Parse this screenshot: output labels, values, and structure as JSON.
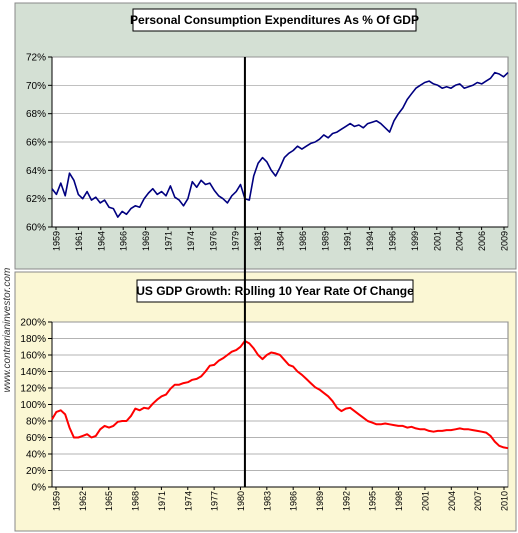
{
  "watermark": "www.contrarianinvestor.com",
  "colors": {
    "top_background": "#d4e0d4",
    "bottom_background": "#fbf7d4",
    "plot_background": "#ffffff",
    "top_series": "#000080",
    "bottom_series": "#ff0000",
    "marker_line": "#000000"
  },
  "marker_year": 1981,
  "chart_data": [
    {
      "type": "line",
      "title": "Personal Consumption Expenditures As % Of GDP",
      "xlabel": "",
      "ylabel": "",
      "xlim": [
        1959,
        2011
      ],
      "ylim": [
        60,
        72
      ],
      "grid": true,
      "legend": "none",
      "yticks": [
        60,
        62,
        64,
        66,
        68,
        70,
        72
      ],
      "ytick_labels": [
        "60%",
        "62%",
        "64%",
        "66%",
        "68%",
        "70%",
        "72%"
      ],
      "xtick_labels": [
        "1959",
        "1961",
        "1964",
        "1966",
        "1969",
        "1971",
        "1974",
        "1976",
        "1979",
        "1981",
        "1984",
        "1986",
        "1989",
        "1991",
        "1994",
        "1996",
        "1999",
        "2001",
        "2004",
        "2006",
        "2009"
      ],
      "series": [
        {
          "x": [
            1959.0,
            1959.5,
            1960.0,
            1960.5,
            1961.0,
            1961.5,
            1962.0,
            1962.5,
            1963.0,
            1963.5,
            1964.0,
            1964.5,
            1965.0,
            1965.5,
            1966.0,
            1966.5,
            1967.0,
            1967.5,
            1968.0,
            1968.5,
            1969.0,
            1969.5,
            1970.0,
            1970.5,
            1971.0,
            1971.5,
            1972.0,
            1972.5,
            1973.0,
            1973.5,
            1974.0,
            1974.5,
            1975.0,
            1975.5,
            1976.0,
            1976.5,
            1977.0,
            1977.5,
            1978.0,
            1978.5,
            1979.0,
            1979.5,
            1980.0,
            1980.5,
            1981.0,
            1981.5,
            1982.0,
            1982.5,
            1983.0,
            1983.5,
            1984.0,
            1984.5,
            1985.0,
            1985.5,
            1986.0,
            1986.5,
            1987.0,
            1987.5,
            1988.0,
            1988.5,
            1989.0,
            1989.5,
            1990.0,
            1990.5,
            1991.0,
            1991.5,
            1992.0,
            1992.5,
            1993.0,
            1993.5,
            1994.0,
            1994.5,
            1995.0,
            1995.5,
            1996.0,
            1996.5,
            1997.0,
            1997.5,
            1998.0,
            1998.5,
            1999.0,
            1999.5,
            2000.0,
            2000.5,
            2001.0,
            2001.5,
            2002.0,
            2002.5,
            2003.0,
            2003.5,
            2004.0,
            2004.5,
            2005.0,
            2005.5,
            2006.0,
            2006.5,
            2007.0,
            2007.5,
            2008.0,
            2008.5,
            2009.0,
            2009.5,
            2010.0,
            2010.5,
            2011.0
          ],
          "y": [
            62.7,
            62.3,
            63.1,
            62.2,
            63.8,
            63.3,
            62.3,
            62.0,
            62.5,
            61.9,
            62.1,
            61.7,
            61.9,
            61.4,
            61.3,
            60.7,
            61.1,
            60.9,
            61.3,
            61.5,
            61.4,
            62.0,
            62.4,
            62.7,
            62.3,
            62.5,
            62.2,
            62.9,
            62.1,
            61.9,
            61.5,
            62.0,
            63.2,
            62.8,
            63.3,
            63.0,
            63.1,
            62.6,
            62.2,
            62.0,
            61.7,
            62.2,
            62.5,
            63.0,
            62.0,
            61.9,
            63.6,
            64.5,
            64.9,
            64.6,
            64.0,
            63.6,
            64.2,
            64.9,
            65.2,
            65.4,
            65.7,
            65.5,
            65.7,
            65.9,
            66.0,
            66.2,
            66.5,
            66.3,
            66.6,
            66.7,
            66.9,
            67.1,
            67.3,
            67.1,
            67.2,
            67.0,
            67.3,
            67.4,
            67.5,
            67.3,
            67.0,
            66.7,
            67.5,
            68.0,
            68.4,
            69.0,
            69.4,
            69.8,
            70.0,
            70.2,
            70.3,
            70.1,
            70.0,
            69.8,
            69.9,
            69.8,
            70.0,
            70.1,
            69.8,
            69.9,
            70.0,
            70.2,
            70.1,
            70.3,
            70.5,
            70.9,
            70.8,
            70.6,
            70.9
          ]
        }
      ]
    },
    {
      "type": "line",
      "title": "US GDP Growth: Rolling 10 Year Rate Of Change",
      "xlabel": "",
      "ylabel": "",
      "xlim": [
        1959,
        2011
      ],
      "ylim": [
        0,
        200
      ],
      "grid": true,
      "legend": "none",
      "yticks": [
        0,
        20,
        40,
        60,
        80,
        100,
        120,
        140,
        160,
        180,
        200
      ],
      "ytick_labels": [
        "0%",
        "20%",
        "40%",
        "60%",
        "80%",
        "100%",
        "120%",
        "140%",
        "160%",
        "180%",
        "200%"
      ],
      "xtick_labels": [
        "1959",
        "1962",
        "1965",
        "1968",
        "1971",
        "1974",
        "1977",
        "1980",
        "1983",
        "1986",
        "1989",
        "1992",
        "1995",
        "1998",
        "2001",
        "2004",
        "2007",
        "2010"
      ],
      "series": [
        {
          "x": [
            1959.0,
            1959.5,
            1960.0,
            1960.5,
            1961.0,
            1961.5,
            1962.0,
            1962.5,
            1963.0,
            1963.5,
            1964.0,
            1964.5,
            1965.0,
            1965.5,
            1966.0,
            1966.5,
            1967.0,
            1967.5,
            1968.0,
            1968.5,
            1969.0,
            1969.5,
            1970.0,
            1970.5,
            1971.0,
            1971.5,
            1972.0,
            1972.5,
            1973.0,
            1973.5,
            1974.0,
            1974.5,
            1975.0,
            1975.5,
            1976.0,
            1976.5,
            1977.0,
            1977.5,
            1978.0,
            1978.5,
            1979.0,
            1979.5,
            1980.0,
            1980.5,
            1981.0,
            1981.5,
            1982.0,
            1982.5,
            1983.0,
            1983.5,
            1984.0,
            1984.5,
            1985.0,
            1985.5,
            1986.0,
            1986.5,
            1987.0,
            1987.5,
            1988.0,
            1988.5,
            1989.0,
            1989.5,
            1990.0,
            1990.5,
            1991.0,
            1991.5,
            1992.0,
            1992.5,
            1993.0,
            1993.5,
            1994.0,
            1994.5,
            1995.0,
            1995.5,
            1996.0,
            1996.5,
            1997.0,
            1997.5,
            1998.0,
            1998.5,
            1999.0,
            1999.5,
            2000.0,
            2000.5,
            2001.0,
            2001.5,
            2002.0,
            2002.5,
            2003.0,
            2003.5,
            2004.0,
            2004.5,
            2005.0,
            2005.5,
            2006.0,
            2006.5,
            2007.0,
            2007.5,
            2008.0,
            2008.5,
            2009.0,
            2009.5,
            2010.0,
            2010.5,
            2011.0
          ],
          "y": [
            82,
            91,
            93,
            88,
            72,
            60,
            60,
            62,
            64,
            60,
            62,
            70,
            74,
            72,
            74,
            79,
            80,
            80,
            86,
            95,
            93,
            96,
            95,
            101,
            106,
            110,
            112,
            119,
            124,
            124,
            126,
            127,
            130,
            131,
            134,
            140,
            147,
            148,
            153,
            156,
            160,
            164,
            166,
            170,
            177,
            174,
            168,
            160,
            155,
            160,
            163,
            162,
            160,
            154,
            148,
            146,
            140,
            136,
            131,
            126,
            121,
            118,
            114,
            110,
            104,
            96,
            92,
            95,
            96,
            92,
            88,
            84,
            80,
            78,
            76,
            76,
            77,
            76,
            75,
            74,
            74,
            72,
            73,
            71,
            70,
            70,
            68,
            67,
            68,
            68,
            69,
            69,
            70,
            71,
            70,
            70,
            69,
            68,
            67,
            66,
            62,
            55,
            50,
            48,
            47
          ]
        }
      ]
    }
  ]
}
